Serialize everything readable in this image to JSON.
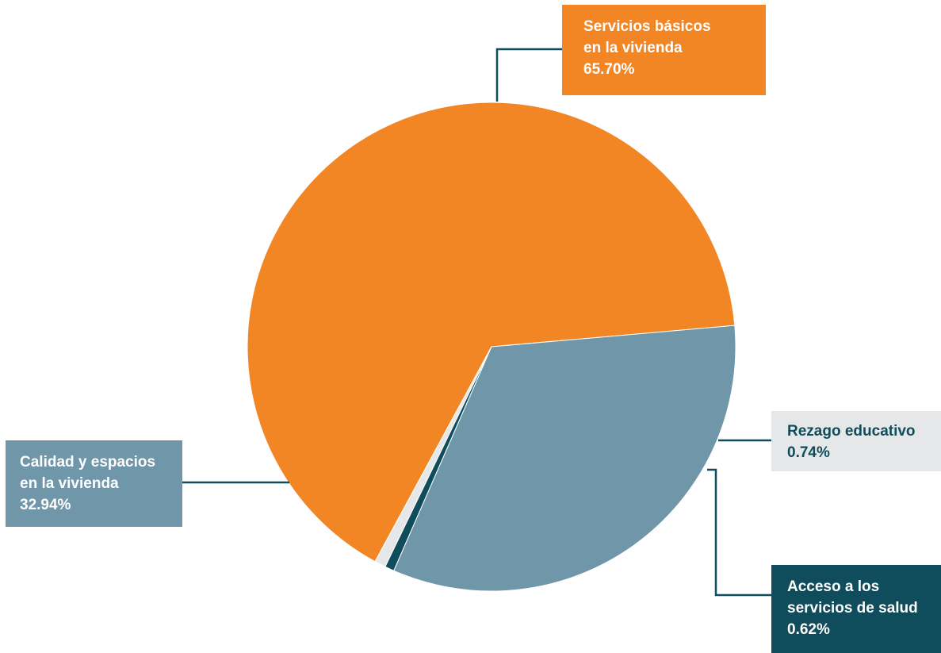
{
  "chart_data": {
    "type": "pie",
    "title": "",
    "slices": [
      {
        "line1": "Servicios básicos",
        "line2": "en la vivienda",
        "value_label": "65.70%",
        "value": 65.7,
        "color": "#f28524",
        "box_bg": "#f28524",
        "box_text": "#ffffff"
      },
      {
        "line1": "Rezago educativo",
        "line2": "",
        "value_label": "0.74%",
        "value": 0.74,
        "color": "#e6e7e8",
        "box_bg": "#e6e7e8",
        "box_text": "#0f4c5c"
      },
      {
        "line1": "Acceso a los",
        "line2": "servicios de salud",
        "value_label": "0.62%",
        "value": 0.62,
        "color": "#0f4c5c",
        "box_bg": "#0f4c5c",
        "box_text": "#ffffff"
      },
      {
        "line1": "Calidad y espacios",
        "line2": "en la vivienda",
        "value_label": "32.94%",
        "value": 32.94,
        "color": "#7096aa",
        "box_bg": "#7096aa",
        "box_text": "#ffffff"
      }
    ],
    "legend": "callout-boxes"
  },
  "colors": {
    "leader_line": "#0f4c5c",
    "background": "#ffffff"
  }
}
